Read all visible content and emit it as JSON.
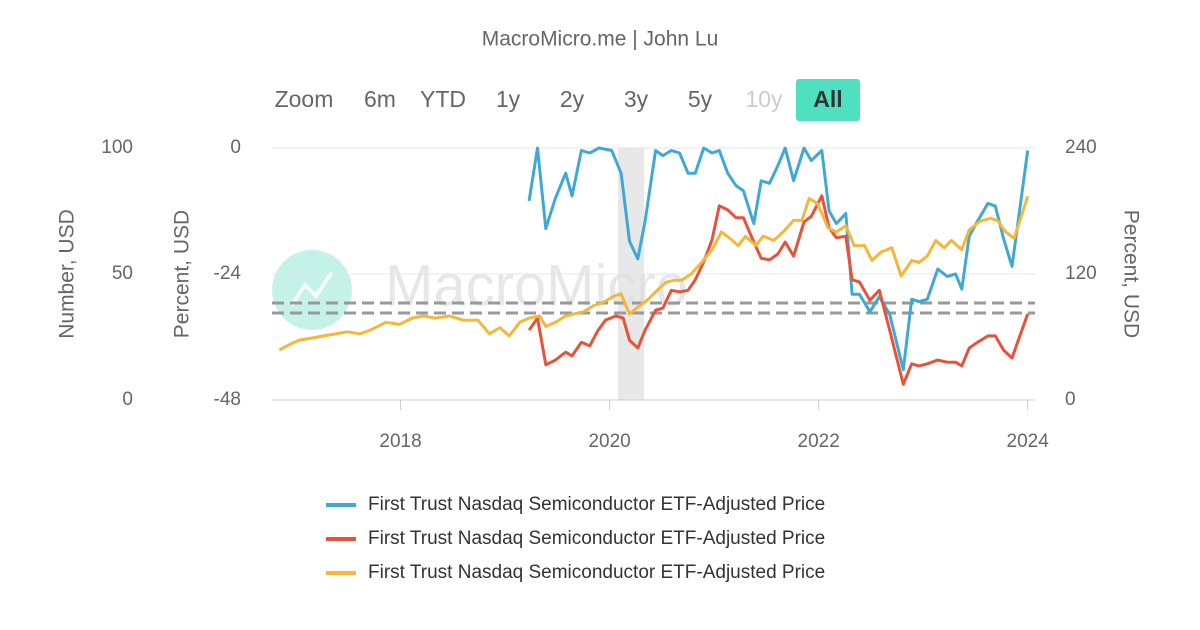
{
  "range_selector": {
    "label": "Zoom",
    "buttons": [
      "6m",
      "YTD",
      "1y",
      "2y",
      "3y",
      "5y",
      "10y",
      "All"
    ],
    "selected": 7,
    "disabled": [
      6
    ]
  },
  "chart_data": {
    "type": "line",
    "title": "MacroMicro.me | John Lu",
    "watermark": "MacroMicro",
    "xlim": [
      2016.77,
      2024.07
    ],
    "xticks": [
      2018,
      2020,
      2022,
      2024
    ],
    "grid": true,
    "legend": "bottom",
    "y_axes": [
      {
        "label": "Number, USD",
        "side": "left",
        "lim": [
          0,
          100
        ],
        "ticks": [
          0,
          50,
          100
        ]
      },
      {
        "label": "Percent, USD",
        "side": "left",
        "lim": [
          -48,
          0
        ],
        "ticks": [
          -48,
          -24,
          0
        ]
      },
      {
        "label": "Percent, USD",
        "side": "right",
        "lim": [
          0,
          240
        ],
        "ticks": [
          0,
          120,
          240
        ]
      }
    ],
    "shaded_ranges": [
      [
        2020.08,
        2020.33
      ]
    ],
    "reference_lines": [
      {
        "axis": 2,
        "value": 92.4
      },
      {
        "axis": 2,
        "value": 82.9
      }
    ],
    "series": [
      {
        "name": "First Trust Nasdaq Semiconductor ETF-Adjusted Price",
        "color": "#3fa9d4",
        "axis": 0,
        "x": [
          2019.23,
          2019.31,
          2019.39,
          2019.48,
          2019.58,
          2019.64,
          2019.73,
          2019.81,
          2019.9,
          2020.02,
          2020.11,
          2020.19,
          2020.27,
          2020.34,
          2020.44,
          2020.51,
          2020.59,
          2020.67,
          2020.75,
          2020.82,
          2020.9,
          2020.98,
          2021.05,
          2021.13,
          2021.21,
          2021.28,
          2021.38,
          2021.45,
          2021.53,
          2021.61,
          2021.68,
          2021.76,
          2021.86,
          2021.93,
          2022.03,
          2022.1,
          2022.17,
          2022.26,
          2022.32,
          2022.39,
          2022.49,
          2022.58,
          2022.68,
          2022.81,
          2022.89,
          2022.96,
          2023.04,
          2023.14,
          2023.23,
          2023.31,
          2023.37,
          2023.44,
          2023.52,
          2023.62,
          2023.69,
          2023.77,
          2023.85,
          2024.0
        ],
        "values": [
          79,
          100,
          68,
          80,
          90,
          81,
          99,
          98,
          100,
          99,
          90,
          63,
          56,
          71,
          99,
          97,
          99,
          98,
          90,
          90,
          100,
          98,
          99,
          90,
          85,
          83,
          70,
          87,
          86,
          93,
          100,
          87,
          100,
          95,
          99,
          75,
          70,
          74,
          42,
          42,
          35,
          41,
          34,
          12,
          40,
          39,
          40,
          52,
          49,
          50,
          44,
          65,
          71,
          78,
          77,
          64,
          53,
          99
        ]
      },
      {
        "name": "First Trust Nasdaq Semiconductor ETF-Adjusted Price",
        "color": "#e5533a",
        "axis": 1,
        "x": [
          2019.23,
          2019.31,
          2019.39,
          2019.48,
          2019.58,
          2019.64,
          2019.73,
          2019.81,
          2019.89,
          2019.96,
          2020.06,
          2020.13,
          2020.19,
          2020.27,
          2020.34,
          2020.44,
          2020.51,
          2020.59,
          2020.67,
          2020.75,
          2020.82,
          2020.9,
          2020.98,
          2021.05,
          2021.13,
          2021.21,
          2021.28,
          2021.38,
          2021.45,
          2021.53,
          2021.61,
          2021.68,
          2021.76,
          2021.86,
          2021.93,
          2022.03,
          2022.1,
          2022.17,
          2022.26,
          2022.32,
          2022.39,
          2022.49,
          2022.58,
          2022.68,
          2022.81,
          2022.89,
          2022.96,
          2023.04,
          2023.14,
          2023.23,
          2023.31,
          2023.37,
          2023.44,
          2023.52,
          2023.62,
          2023.69,
          2023.77,
          2023.85,
          2024.0
        ],
        "values": [
          -34.7,
          -32.4,
          -41.3,
          -40.4,
          -38.9,
          -39.6,
          -37,
          -37.7,
          -34.7,
          -32.8,
          -32,
          -32.4,
          -36.6,
          -38.1,
          -34.7,
          -30.9,
          -30.5,
          -27.1,
          -27.4,
          -27.1,
          -25.1,
          -21.7,
          -17.5,
          -11,
          -11.8,
          -13.3,
          -13.3,
          -17.9,
          -21,
          -21.3,
          -20.2,
          -17.9,
          -20.6,
          -14.1,
          -13,
          -9.1,
          -15.2,
          -17.1,
          -16.8,
          -25.1,
          -25.5,
          -29,
          -27.1,
          -34.7,
          -45,
          -41.1,
          -41.5,
          -41.1,
          -40.4,
          -40.8,
          -40.8,
          -41.5,
          -38.1,
          -37,
          -35.8,
          -35.8,
          -38.5,
          -40,
          -31.6
        ]
      },
      {
        "name": "First Trust Nasdaq Semiconductor ETF-Adjusted Price",
        "color": "#f3b73b",
        "axis": 2,
        "x": [
          2016.84,
          2016.94,
          2017.03,
          2017.15,
          2017.26,
          2017.38,
          2017.49,
          2017.61,
          2017.72,
          2017.86,
          2017.99,
          2018.11,
          2018.22,
          2018.33,
          2018.47,
          2018.6,
          2018.74,
          2018.85,
          2018.95,
          2019.04,
          2019.14,
          2019.23,
          2019.33,
          2019.39,
          2019.48,
          2019.58,
          2019.66,
          2019.75,
          2019.85,
          2019.94,
          2020.04,
          2020.11,
          2020.19,
          2020.29,
          2020.36,
          2020.46,
          2020.54,
          2020.61,
          2020.69,
          2020.78,
          2020.88,
          2020.98,
          2021.07,
          2021.15,
          2021.23,
          2021.3,
          2021.4,
          2021.47,
          2021.57,
          2021.66,
          2021.76,
          2021.84,
          2021.91,
          2021.99,
          2022.09,
          2022.17,
          2022.26,
          2022.34,
          2022.44,
          2022.51,
          2022.6,
          2022.7,
          2022.79,
          2022.89,
          2022.96,
          2023.04,
          2023.12,
          2023.2,
          2023.27,
          2023.37,
          2023.44,
          2023.54,
          2023.64,
          2023.71,
          2023.79,
          2023.87,
          2024.0
        ],
        "values": [
          47.6,
          53,
          57,
          59,
          61,
          63,
          65,
          63,
          67,
          74,
          72,
          78,
          80,
          78,
          80,
          76,
          76,
          63,
          69,
          61,
          74,
          78,
          80,
          70,
          74,
          80,
          82,
          84,
          90,
          93,
          99,
          101,
          82,
          90,
          95,
          105,
          112,
          114,
          114,
          120,
          131,
          143,
          160,
          154,
          147,
          156,
          147,
          156,
          152,
          160,
          171,
          171,
          192,
          187,
          164,
          160,
          166,
          147,
          147,
          133,
          141,
          145,
          118,
          133,
          131,
          137,
          152,
          145,
          152,
          143,
          162,
          170,
          173,
          171,
          160,
          154,
          194
        ]
      }
    ]
  }
}
